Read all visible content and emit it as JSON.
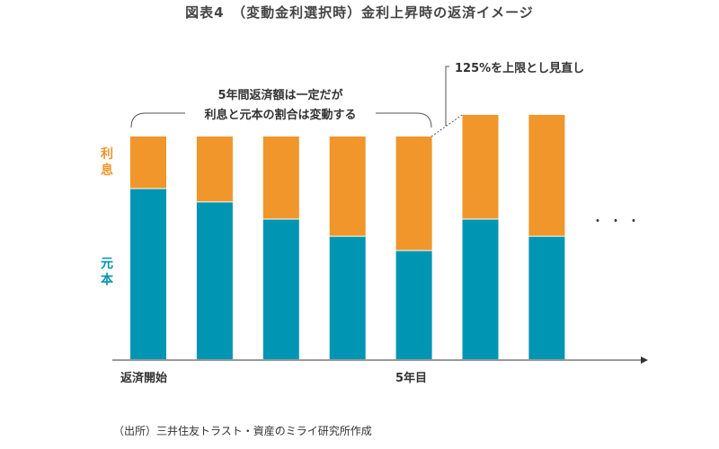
{
  "title": "図表4　（変動金利選択時）金利上昇時の返済イメージ",
  "annotations": {
    "bracket_line1": "5年間返済額は一定だが",
    "bracket_line2": "利息と元本の割合は変動する",
    "cap_note": "125%を上限とし見直し"
  },
  "legend": {
    "interest": {
      "label": "利息",
      "color": "#f0962a"
    },
    "principal": {
      "label": "元本",
      "color": "#0095b2"
    }
  },
  "x_labels": {
    "start": "返済開始",
    "year5": "5年目"
  },
  "continuation": "・・・",
  "source": "（出所）三井住友トラスト・資産のミライ研究所作成",
  "bars": [
    {
      "principal": 76.6,
      "interest": 23.4
    },
    {
      "principal": 70.6,
      "interest": 29.4
    },
    {
      "principal": 62.9,
      "interest": 37.1
    },
    {
      "principal": 55.2,
      "interest": 44.8
    },
    {
      "principal": 48.8,
      "interest": 51.2
    },
    {
      "principal": 62.9,
      "interest": 46.8
    },
    {
      "principal": 55.2,
      "interest": 54.5
    }
  ]
}
